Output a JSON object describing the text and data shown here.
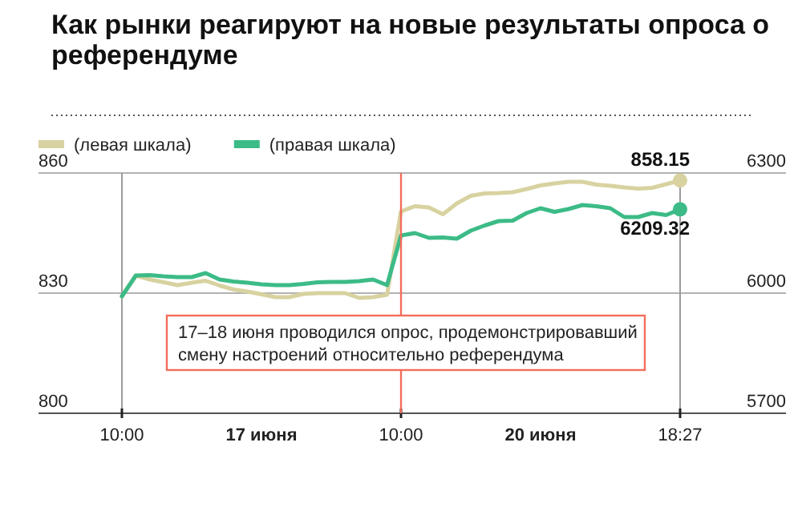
{
  "chart_data": {
    "type": "line",
    "title": "Как рынки реагируют на новые результаты опроса о референдуме",
    "categories": [
      "10:00",
      null,
      null,
      null,
      null,
      null,
      null,
      null,
      null,
      null,
      "17 июня",
      null,
      null,
      null,
      null,
      null,
      null,
      null,
      null,
      null,
      "10:00",
      null,
      null,
      null,
      null,
      null,
      null,
      null,
      null,
      null,
      "20 июня",
      null,
      null,
      null,
      null,
      null,
      null,
      null,
      null,
      null,
      "18:27"
    ],
    "ylim": [
      800,
      860
    ],
    "yticks": [
      800,
      830,
      860
    ],
    "y2lim": [
      5700,
      6300
    ],
    "y2ticks": [
      5700,
      6000,
      6300
    ],
    "grid": true,
    "legend": "top left",
    "annotations": [
      "17–18 июня проводился опрос, продемонстрировавший смену настроений относительно референдума"
    ],
    "series": [
      {
        "name": "(левая шкала)",
        "color": "#d8d2a0",
        "values": [
          829.2,
          834.4,
          833.4,
          832.7,
          832,
          832.6,
          833.1,
          831.9,
          830.9,
          830.4,
          829.7,
          829,
          829,
          829.8,
          830,
          830,
          830,
          828.8,
          829,
          829.6,
          850.4,
          851.7,
          851.4,
          849.7,
          852.4,
          854.3,
          854.9,
          855,
          855.2,
          856,
          856.9,
          857.4,
          857.8,
          857.8,
          857.1,
          856.8,
          856.4,
          856.1,
          856.3,
          857.2,
          858.15
        ],
        "value_labels": [
          null,
          null,
          null,
          null,
          null,
          null,
          null,
          null,
          null,
          null,
          null,
          null,
          null,
          null,
          null,
          null,
          null,
          null,
          null,
          null,
          null,
          null,
          null,
          null,
          null,
          null,
          null,
          null,
          null,
          null,
          null,
          null,
          null,
          null,
          null,
          null,
          null,
          null,
          null,
          null,
          "858.15"
        ]
      },
      {
        "name": "(правая шкала)",
        "color": "#3cbb87",
        "axis": "y2",
        "values": [
          5992,
          6044,
          6045,
          6042,
          6040,
          6040,
          6050,
          6034,
          6029,
          6026,
          6022,
          6020,
          6020,
          6023,
          6027,
          6028,
          6028,
          6030,
          6034,
          6020,
          6144,
          6150,
          6138,
          6139,
          6136,
          6156,
          6169,
          6180,
          6181,
          6200,
          6212,
          6203,
          6210,
          6220,
          6217,
          6212,
          6190,
          6190,
          6200,
          6195,
          6209.32
        ],
        "value_labels": [
          null,
          null,
          null,
          null,
          null,
          null,
          null,
          null,
          null,
          null,
          null,
          null,
          null,
          null,
          null,
          null,
          null,
          null,
          null,
          null,
          null,
          null,
          null,
          null,
          null,
          null,
          null,
          null,
          null,
          null,
          null,
          null,
          null,
          null,
          null,
          null,
          null,
          null,
          null,
          null,
          "6209.32"
        ]
      }
    ]
  }
}
